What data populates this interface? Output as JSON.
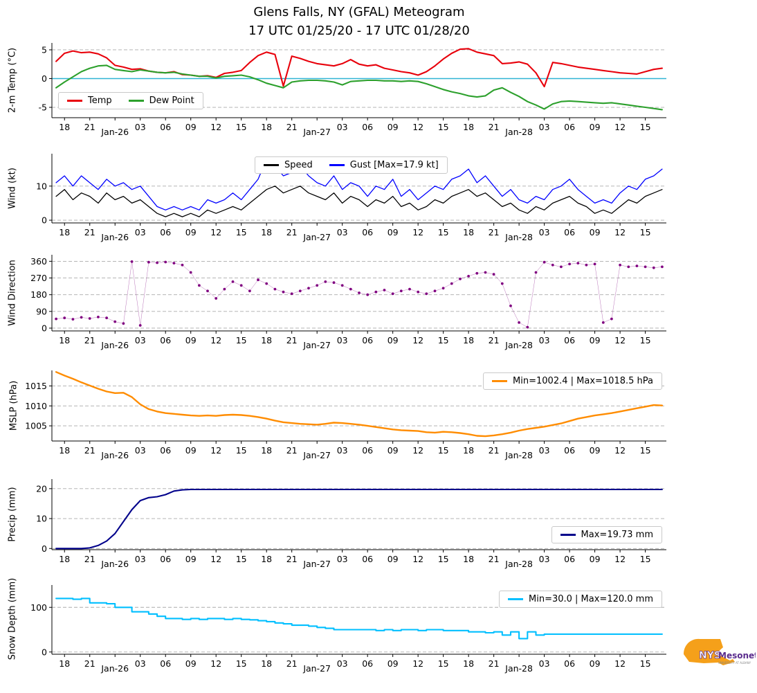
{
  "title": {
    "line1": "Glens Falls, NY (GFAL) Meteogram",
    "line2": "17 UTC 01/25/20 - 17 UTC 01/28/20"
  },
  "x_axis": {
    "start": "17 UTC 01/25/20",
    "end": "17 UTC 01/28/20",
    "interval_hours": 1,
    "tick_labels": [
      "18",
      "21",
      "Jan-26",
      "03",
      "06",
      "09",
      "12",
      "15",
      "18",
      "21",
      "Jan-27",
      "03",
      "06",
      "09",
      "12",
      "15",
      "18",
      "21",
      "Jan-28",
      "03",
      "06",
      "09",
      "12",
      "15"
    ]
  },
  "chart_data": [
    {
      "id": "temp",
      "type": "line",
      "ylabel": "2-m Temp (°C)",
      "yticks": [
        5,
        0,
        -5
      ],
      "ylim": [
        -6.8,
        6.2
      ],
      "ref_line": {
        "y": 0,
        "color": "#2fb4d4"
      },
      "legend_position": "bottom-left",
      "series": [
        {
          "name": "Temp",
          "legend_label": "Temp",
          "color": "#e8000b",
          "values": [
            3.0,
            4.4,
            4.8,
            4.5,
            4.6,
            4.3,
            3.6,
            2.3,
            2.0,
            1.6,
            1.7,
            1.3,
            1.1,
            1.0,
            1.2,
            0.7,
            0.6,
            0.4,
            0.5,
            0.2,
            0.9,
            1.1,
            1.4,
            2.8,
            4.0,
            4.6,
            4.2,
            -1.3,
            3.9,
            3.5,
            3.0,
            2.6,
            2.4,
            2.2,
            2.6,
            3.3,
            2.5,
            2.2,
            2.4,
            1.8,
            1.5,
            1.2,
            1.0,
            0.6,
            1.2,
            2.2,
            3.4,
            4.4,
            5.1,
            5.2,
            4.6,
            4.3,
            4.0,
            2.6,
            2.7,
            2.9,
            2.5,
            1.0,
            -1.4,
            2.8,
            2.6,
            2.3,
            2.0,
            1.8,
            1.6,
            1.4,
            1.2,
            1.0,
            0.9,
            0.8,
            1.2,
            1.6,
            1.8
          ]
        },
        {
          "name": "Dew Point",
          "legend_label": "Dew Point",
          "color": "#2ca02c",
          "values": [
            -1.6,
            -0.6,
            0.3,
            1.2,
            1.8,
            2.2,
            2.3,
            1.6,
            1.4,
            1.2,
            1.5,
            1.3,
            1.1,
            1.0,
            1.1,
            0.8,
            0.6,
            0.4,
            0.4,
            0.1,
            0.4,
            0.5,
            0.6,
            0.3,
            -0.2,
            -0.8,
            -1.2,
            -1.6,
            -0.6,
            -0.4,
            -0.3,
            -0.3,
            -0.4,
            -0.6,
            -1.1,
            -0.5,
            -0.4,
            -0.3,
            -0.3,
            -0.4,
            -0.4,
            -0.5,
            -0.4,
            -0.5,
            -0.9,
            -1.4,
            -1.9,
            -2.3,
            -2.6,
            -3.0,
            -3.2,
            -3.0,
            -2.0,
            -1.6,
            -2.4,
            -3.1,
            -4.0,
            -4.6,
            -5.3,
            -4.4,
            -4.0,
            -3.9,
            -4.0,
            -4.1,
            -4.2,
            -4.3,
            -4.2,
            -4.4,
            -4.6,
            -4.8,
            -5.0,
            -5.2,
            -5.4
          ]
        }
      ]
    },
    {
      "id": "wind",
      "type": "line",
      "ylabel": "Wind (kt)",
      "yticks": [
        10,
        0
      ],
      "ylim": [
        -0.8,
        19.5
      ],
      "legend_position": "top-center",
      "series": [
        {
          "name": "Speed",
          "legend_label": "Speed",
          "color": "#000000",
          "values": [
            7,
            9,
            6,
            8,
            7,
            5,
            8,
            6,
            7,
            5,
            6,
            4,
            2,
            1,
            2,
            1,
            2,
            1,
            3,
            2,
            3,
            4,
            3,
            5,
            7,
            9,
            10,
            8,
            9,
            10,
            8,
            7,
            6,
            8,
            5,
            7,
            6,
            4,
            6,
            5,
            7,
            4,
            5,
            3,
            4,
            6,
            5,
            7,
            8,
            9,
            7,
            8,
            6,
            4,
            5,
            3,
            2,
            4,
            3,
            5,
            6,
            7,
            5,
            4,
            2,
            3,
            2,
            4,
            6,
            5,
            7,
            8,
            9
          ]
        },
        {
          "name": "Gust",
          "legend_label": "Gust [Max=17.9 kt]",
          "color": "#0000ff",
          "values": [
            11,
            13,
            10,
            13,
            11,
            9,
            12,
            10,
            11,
            9,
            10,
            7,
            4,
            3,
            4,
            3,
            4,
            3,
            6,
            5,
            6,
            8,
            6,
            9,
            12,
            17.9,
            16,
            13,
            14,
            16,
            13,
            11,
            10,
            13,
            9,
            11,
            10,
            7,
            10,
            9,
            12,
            7,
            9,
            6,
            8,
            10,
            9,
            12,
            13,
            15,
            11,
            13,
            10,
            7,
            9,
            6,
            5,
            7,
            6,
            9,
            10,
            12,
            9,
            7,
            5,
            6,
            5,
            8,
            10,
            9,
            12,
            13,
            15
          ]
        }
      ]
    },
    {
      "id": "wind_direction",
      "type": "scatter",
      "ylabel": "Wind Direction",
      "yticks": [
        360,
        270,
        180,
        90,
        0
      ],
      "ylim": [
        -15,
        395
      ],
      "series": [
        {
          "name": "Wind Direction",
          "color": "#800080",
          "values": [
            50,
            55,
            48,
            58,
            52,
            60,
            55,
            35,
            25,
            358,
            15,
            355,
            352,
            356,
            350,
            340,
            300,
            230,
            200,
            160,
            210,
            250,
            230,
            200,
            260,
            240,
            210,
            195,
            185,
            200,
            215,
            230,
            250,
            245,
            230,
            210,
            190,
            180,
            195,
            205,
            185,
            200,
            210,
            195,
            185,
            200,
            215,
            240,
            265,
            280,
            295,
            300,
            290,
            240,
            120,
            30,
            5,
            300,
            355,
            340,
            330,
            345,
            350,
            340,
            345,
            30,
            50,
            340,
            330,
            335,
            330,
            325,
            330
          ]
        }
      ]
    },
    {
      "id": "mslp",
      "type": "line",
      "ylabel": "MSLP (hPa)",
      "yticks": [
        1015,
        1010,
        1005
      ],
      "ylim": [
        1001.2,
        1018.9
      ],
      "legend_position": "top-right",
      "series": [
        {
          "name": "MSLP",
          "legend_label": "Min=1002.4 | Max=1018.5 hPa",
          "color": "#ff8c00",
          "values": [
            1018.5,
            1017.6,
            1016.8,
            1015.9,
            1015.1,
            1014.3,
            1013.6,
            1013.2,
            1013.3,
            1012.2,
            1010.4,
            1009.2,
            1008.6,
            1008.2,
            1008.0,
            1007.8,
            1007.6,
            1007.5,
            1007.6,
            1007.5,
            1007.7,
            1007.8,
            1007.7,
            1007.5,
            1007.2,
            1006.8,
            1006.3,
            1005.9,
            1005.7,
            1005.5,
            1005.4,
            1005.3,
            1005.5,
            1005.8,
            1005.7,
            1005.5,
            1005.3,
            1005.0,
            1004.7,
            1004.4,
            1004.1,
            1003.9,
            1003.8,
            1003.7,
            1003.4,
            1003.3,
            1003.5,
            1003.4,
            1003.2,
            1002.9,
            1002.5,
            1002.4,
            1002.6,
            1002.9,
            1003.3,
            1003.8,
            1004.2,
            1004.5,
            1004.8,
            1005.2,
            1005.6,
            1006.2,
            1006.8,
            1007.2,
            1007.6,
            1007.9,
            1008.2,
            1008.6,
            1009.0,
            1009.4,
            1009.8,
            1010.2,
            1010.1
          ]
        }
      ]
    },
    {
      "id": "precip",
      "type": "line",
      "ylabel": "Precip (mm)",
      "yticks": [
        20,
        10,
        0
      ],
      "ylim": [
        -0.4,
        23.2
      ],
      "legend_position": "right",
      "series": [
        {
          "name": "Precip",
          "legend_label": "Max=19.73 mm",
          "color": "#00008b",
          "values": [
            0,
            0,
            0,
            0,
            0.2,
            1.0,
            2.5,
            5.0,
            9.0,
            13.0,
            16.0,
            17.0,
            17.3,
            18.0,
            19.2,
            19.6,
            19.73,
            19.73,
            19.73,
            19.73,
            19.73,
            19.73,
            19.73,
            19.73,
            19.73,
            19.73,
            19.73,
            19.73,
            19.73,
            19.73,
            19.73,
            19.73,
            19.73,
            19.73,
            19.73,
            19.73,
            19.73,
            19.73,
            19.73,
            19.73,
            19.73,
            19.73,
            19.73,
            19.73,
            19.73,
            19.73,
            19.73,
            19.73,
            19.73,
            19.73,
            19.73,
            19.73,
            19.73,
            19.73,
            19.73,
            19.73,
            19.73,
            19.73,
            19.73,
            19.73,
            19.73,
            19.73,
            19.73,
            19.73,
            19.73,
            19.73,
            19.73,
            19.73,
            19.73,
            19.73,
            19.73,
            19.73,
            19.73
          ]
        }
      ]
    },
    {
      "id": "snow_depth",
      "type": "line",
      "step": true,
      "ylabel": "Snow Depth (mm)",
      "yticks": [
        100,
        0
      ],
      "ylim": [
        -5,
        150
      ],
      "legend_position": "top-right",
      "series": [
        {
          "name": "Snow Depth",
          "legend_label": "Min=30.0 | Max=120.0 mm",
          "color": "#00bfff",
          "values": [
            120,
            120,
            118,
            120,
            110,
            110,
            108,
            100,
            100,
            90,
            90,
            85,
            80,
            75,
            75,
            73,
            75,
            73,
            75,
            75,
            73,
            75,
            73,
            72,
            70,
            68,
            65,
            63,
            60,
            60,
            58,
            55,
            53,
            50,
            50,
            50,
            50,
            50,
            48,
            50,
            48,
            50,
            50,
            48,
            50,
            50,
            48,
            48,
            48,
            45,
            45,
            43,
            45,
            38,
            45,
            30,
            45,
            38,
            40,
            40,
            40,
            40,
            40,
            40,
            40,
            40,
            40,
            40,
            40,
            40,
            40,
            40,
            40
          ]
        }
      ]
    }
  ],
  "logo": {
    "nys": "NYS",
    "mesonet": "Mesonet",
    "tagline": "UNIVERSITY AT ALBANY"
  }
}
